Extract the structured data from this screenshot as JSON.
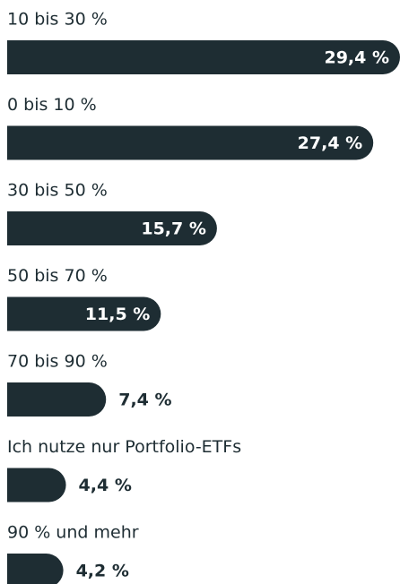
{
  "chart_data": {
    "type": "bar",
    "orientation": "horizontal",
    "categories": [
      "10 bis 30 %",
      "0 bis 10 %",
      "30 bis 50 %",
      "50 bis 70 %",
      "70 bis 90 %",
      "Ich nutze nur Portfolio-ETFs",
      "90 % und mehr"
    ],
    "values": [
      29.4,
      27.4,
      15.7,
      11.5,
      7.4,
      4.4,
      4.2
    ],
    "value_labels": [
      "29,4 %",
      "27,4 %",
      "15,7 %",
      "11,5 %",
      "7,4 %",
      "4,4 %",
      "4,2 %"
    ],
    "color": "#1e2d33",
    "xlim": [
      0,
      29.4
    ]
  }
}
